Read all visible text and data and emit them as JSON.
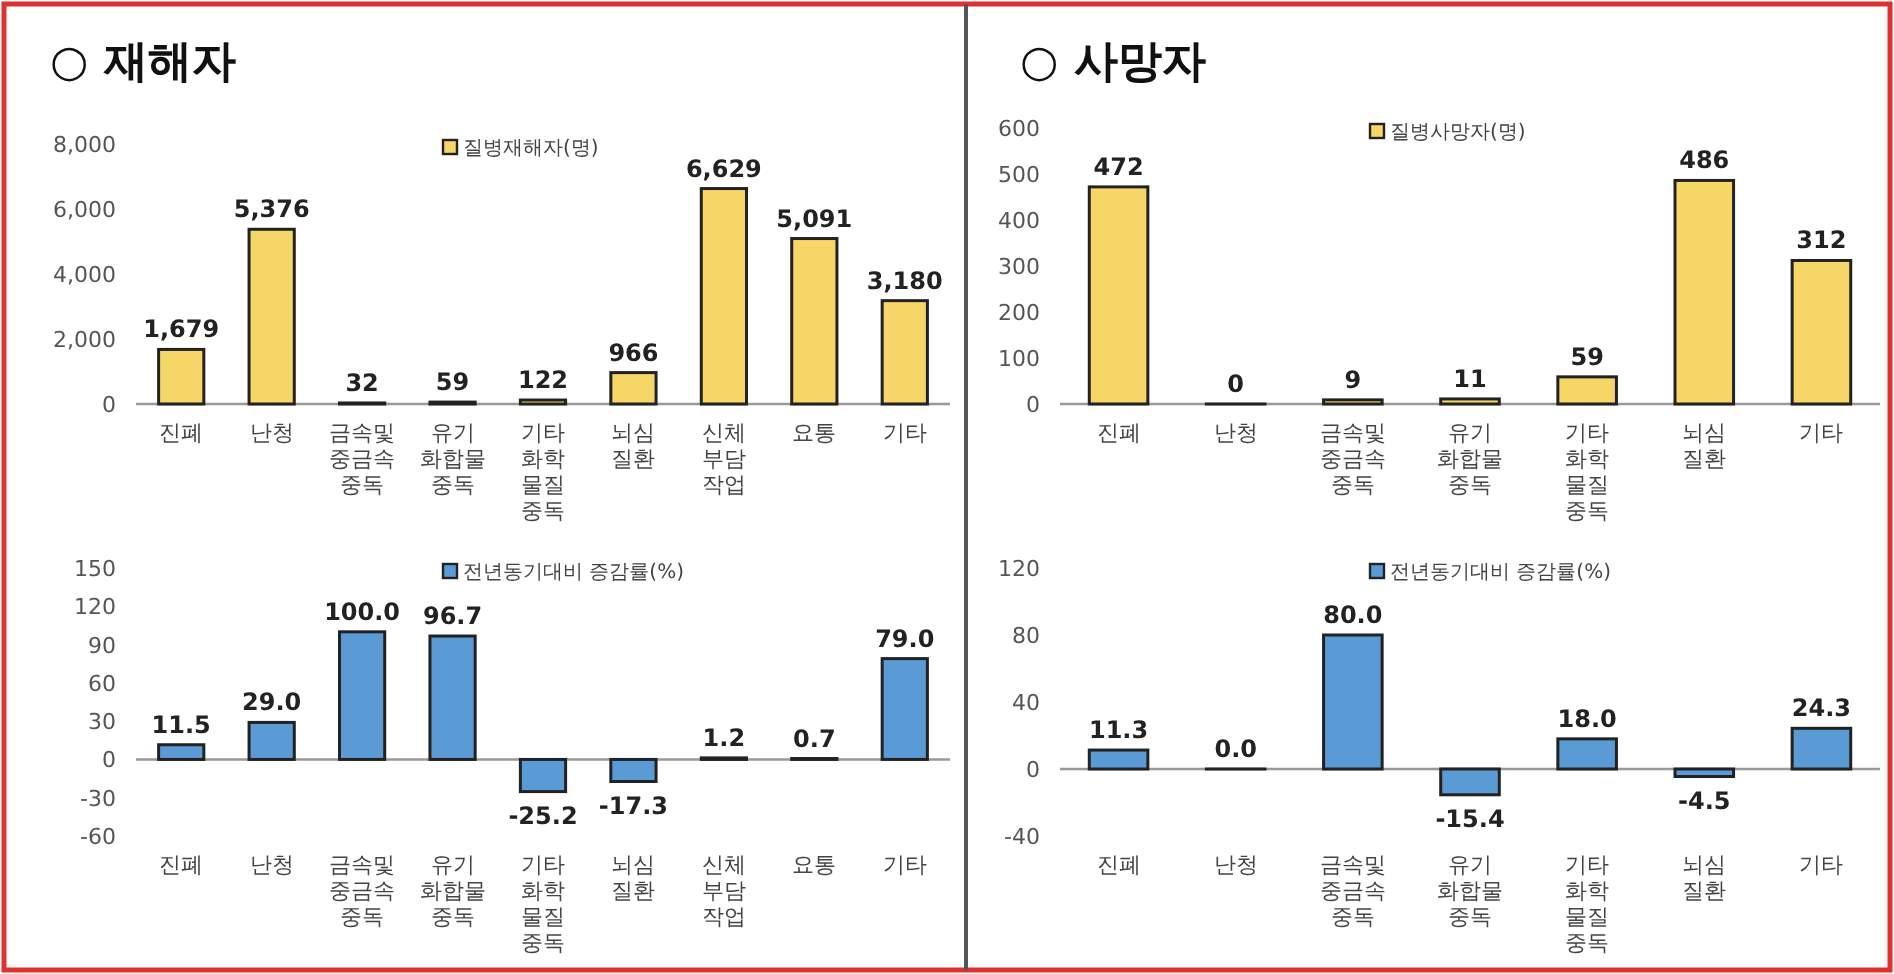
{
  "chart_data": [
    {
      "type": "bar",
      "title": "○ 재해자",
      "categories": [
        "진폐",
        "난청",
        "금속및 중금속 중독",
        "유기 화합물 중독",
        "기타 화학 물질 중독",
        "뇌심 질환",
        "신체 부담 작업",
        "요통",
        "기타"
      ],
      "series": [
        {
          "name": "질병재해자(명)",
          "color": "#f7d668",
          "values": [
            1679,
            5376,
            32,
            59,
            122,
            966,
            6629,
            5091,
            3180
          ],
          "value_labels": [
            "1,679",
            "5,376",
            "32",
            "59",
            "122",
            "966",
            "6,629",
            "5,091",
            "3,180"
          ]
        }
      ],
      "ylim": [
        0,
        8000
      ],
      "yticks": [
        0,
        {
          "value": 2000,
          "label": "2,000"
        },
        {
          "value": 4000,
          "label": "4,000"
        },
        {
          "value": 6000,
          "label": "6,000"
        },
        {
          "value": 8000,
          "label": "8,000"
        }
      ],
      "legend": "top"
    },
    {
      "type": "bar",
      "categories": [
        "진폐",
        "난청",
        "금속및 중금속 중독",
        "유기 화합물 중독",
        "기타 화학 물질 중독",
        "뇌심 질환",
        "신체 부담 작업",
        "요통",
        "기타"
      ],
      "series": [
        {
          "name": "전년동기대비 증감률(%)",
          "color": "#5b9bd5",
          "values": [
            11.5,
            29.0,
            100.0,
            96.7,
            -25.2,
            -17.3,
            1.2,
            0.7,
            79.0
          ],
          "value_labels": [
            "11.5",
            "29.0",
            "100.0",
            "96.7",
            "-25.2",
            "-17.3",
            "1.2",
            "0.7",
            "79.0"
          ]
        }
      ],
      "ylim": [
        -60,
        150
      ],
      "yticks": [
        -60,
        -30,
        0,
        30,
        60,
        90,
        120,
        150
      ],
      "legend": "top"
    },
    {
      "type": "bar",
      "title": "○ 사망자",
      "categories": [
        "진폐",
        "난청",
        "금속및 중금속 중독",
        "유기 화합물 중독",
        "기타 화학 물질 중독",
        "뇌심 질환",
        "기타"
      ],
      "series": [
        {
          "name": "질병사망자(명)",
          "color": "#f7d668",
          "values": [
            472,
            0,
            9,
            11,
            59,
            486,
            312
          ],
          "value_labels": [
            "472",
            "0",
            "9",
            "11",
            "59",
            "486",
            "312"
          ]
        }
      ],
      "ylim": [
        0,
        600
      ],
      "yticks": [
        0,
        100,
        200,
        300,
        400,
        500,
        600
      ],
      "legend": "top"
    },
    {
      "type": "bar",
      "categories": [
        "진폐",
        "난청",
        "금속및 중금속 중독",
        "유기 화합물 중독",
        "기타 화학 물질 중독",
        "뇌심 질환",
        "기타"
      ],
      "series": [
        {
          "name": "전년동기대비 증감률(%)",
          "color": "#5b9bd5",
          "values": [
            11.3,
            0.0,
            80.0,
            -15.4,
            18.0,
            -4.5,
            24.3
          ],
          "value_labels": [
            "11.3",
            "0.0",
            "80.0",
            "-15.4",
            "18.0",
            "-4.5",
            "24.3"
          ]
        }
      ],
      "ylim": [
        -40,
        120
      ],
      "yticks": [
        -40,
        0,
        40,
        80,
        120
      ],
      "legend": "top"
    }
  ]
}
